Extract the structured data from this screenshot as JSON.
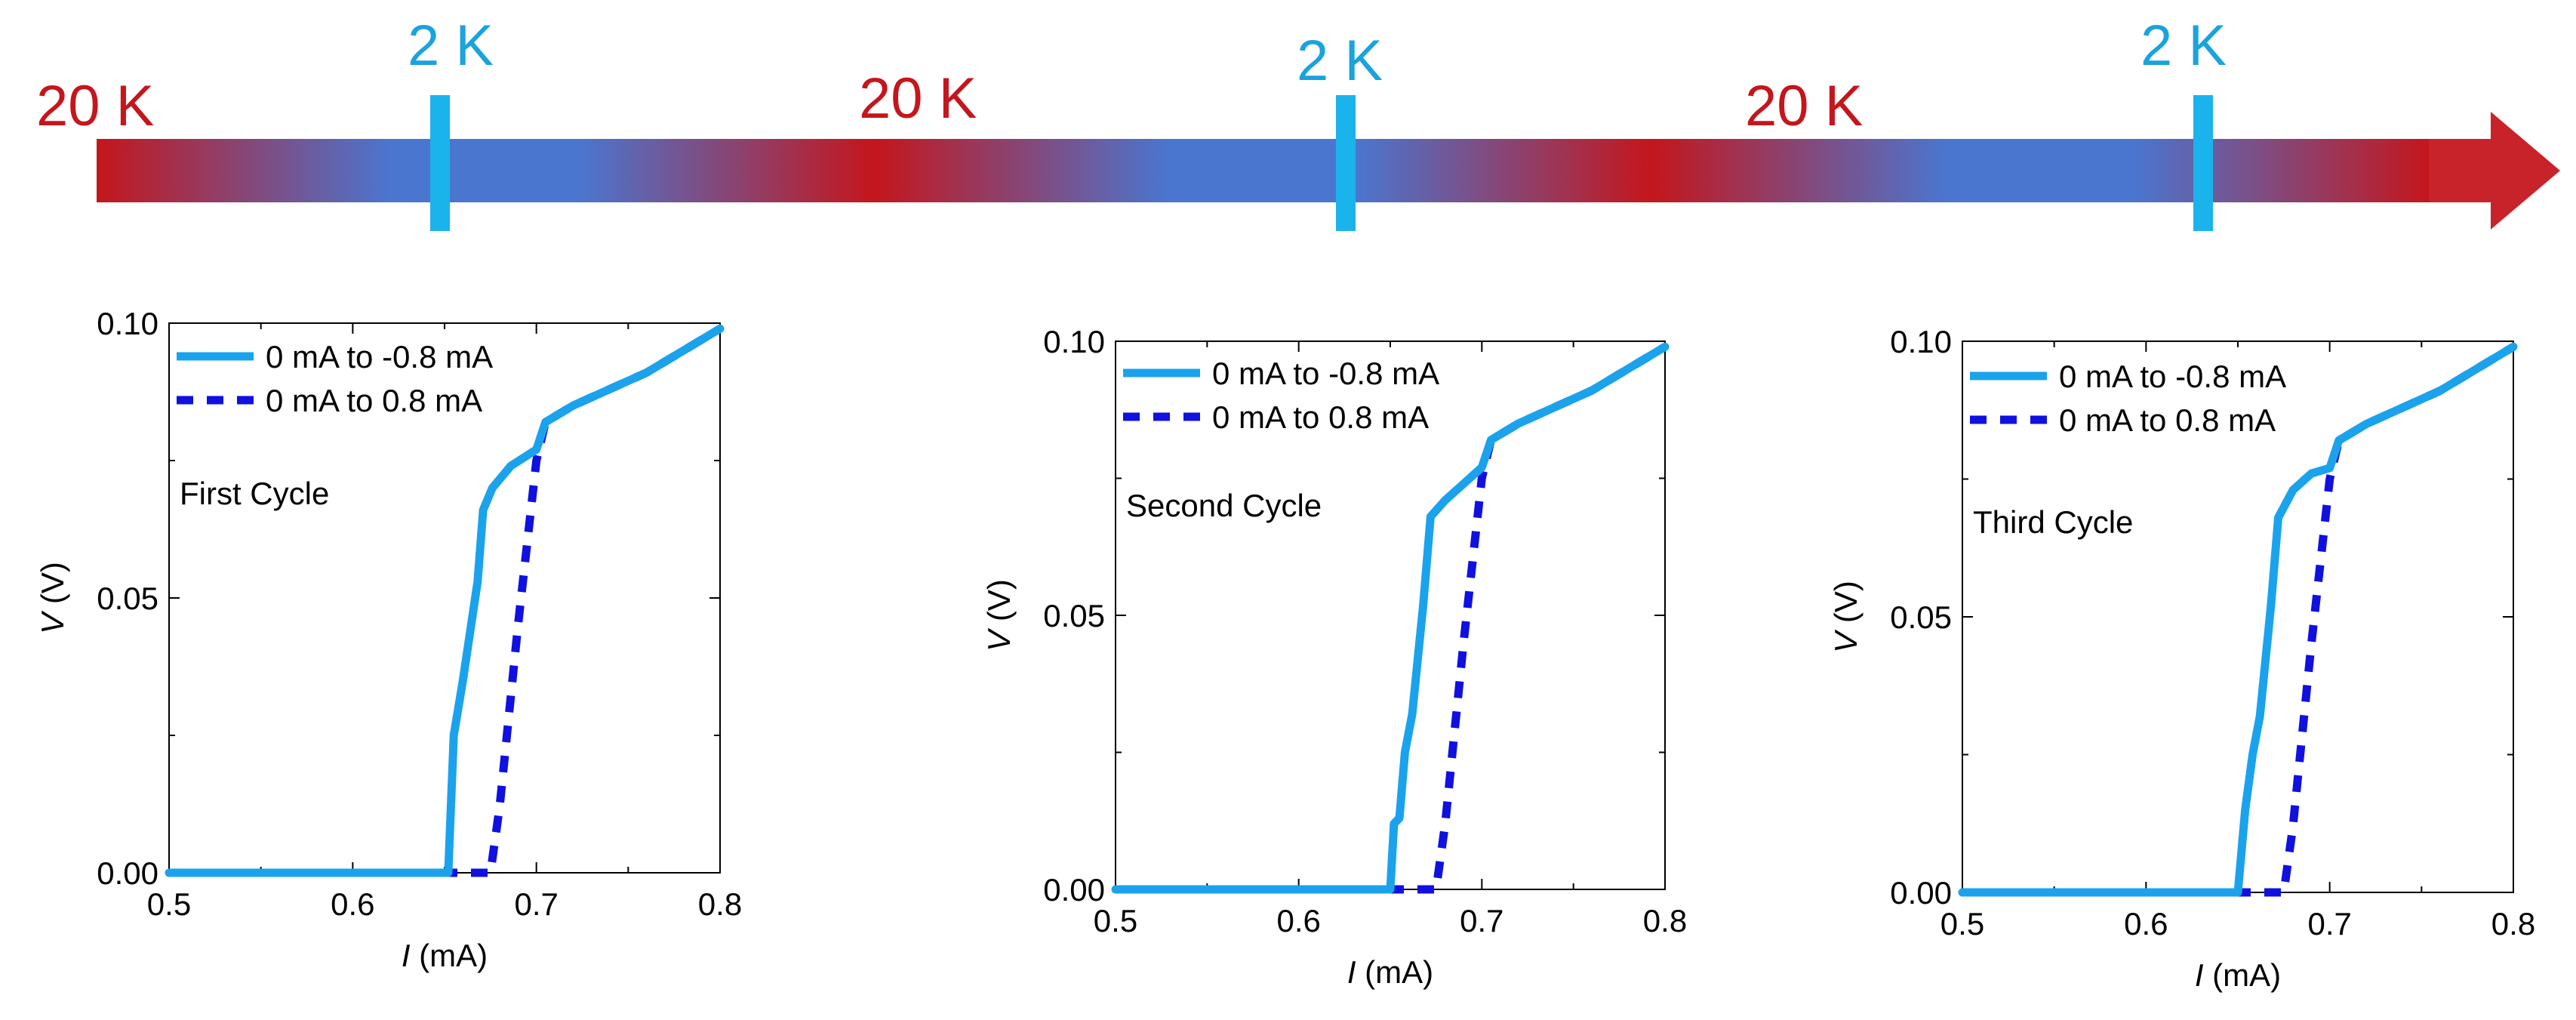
{
  "timeline": {
    "labels": [
      {
        "text": "20 K",
        "kind": "hot"
      },
      {
        "text": "2 K",
        "kind": "cold"
      },
      {
        "text": "20 K",
        "kind": "hot"
      },
      {
        "text": "2 K",
        "kind": "cold"
      },
      {
        "text": "20 K",
        "kind": "hot"
      },
      {
        "text": "2 K",
        "kind": "cold"
      }
    ],
    "colors": {
      "hot": "#c4161c",
      "cold": "#1aa3dd",
      "bar_cold": "#4a76d0",
      "marker": "#1bb3ec"
    }
  },
  "chart_data": [
    {
      "type": "line",
      "annotation": "First Cycle",
      "xlabel_italic": "I",
      "xlabel_rest": " (mA)",
      "ylabel_italic": "V",
      "ylabel_rest": " (V)",
      "xlim": [
        0.5,
        0.8
      ],
      "ylim": [
        0.0,
        0.1
      ],
      "xticks": [
        "0.5",
        "0.6",
        "0.7",
        "0.8"
      ],
      "yticks": [
        "0.00",
        "0.05",
        "0.10"
      ],
      "legend_position": "top-left",
      "series": [
        {
          "name": "0 mA to -0.8 mA",
          "style": "solid",
          "color": "#1aa3ec",
          "x": [
            0.5,
            0.652,
            0.655,
            0.66,
            0.668,
            0.671,
            0.676,
            0.686,
            0.7,
            0.705,
            0.72,
            0.76,
            0.8
          ],
          "y": [
            0.0,
            0.0,
            0.025,
            0.035,
            0.053,
            0.066,
            0.07,
            0.074,
            0.077,
            0.082,
            0.085,
            0.091,
            0.099
          ]
        },
        {
          "name": "0 mA to 0.8 mA",
          "style": "dashed",
          "color": "#1010e0",
          "x": [
            0.5,
            0.675,
            0.68,
            0.69,
            0.7,
            0.705,
            0.72,
            0.76,
            0.8
          ],
          "y": [
            0.0,
            0.0,
            0.012,
            0.045,
            0.075,
            0.082,
            0.085,
            0.091,
            0.099
          ]
        }
      ]
    },
    {
      "type": "line",
      "annotation": "Second Cycle",
      "xlabel_italic": "I",
      "xlabel_rest": " (mA)",
      "ylabel_italic": "V",
      "ylabel_rest": " (V)",
      "xlim": [
        0.5,
        0.8
      ],
      "ylim": [
        0.0,
        0.1
      ],
      "xticks": [
        "0.5",
        "0.6",
        "0.7",
        "0.8"
      ],
      "yticks": [
        "0.00",
        "0.05",
        "0.10"
      ],
      "legend_position": "top-left",
      "series": [
        {
          "name": "0 mA to -0.8 mA",
          "style": "solid",
          "color": "#1aa3ec",
          "x": [
            0.5,
            0.65,
            0.652,
            0.655,
            0.658,
            0.662,
            0.668,
            0.672,
            0.68,
            0.69,
            0.7,
            0.705,
            0.72,
            0.76,
            0.8
          ],
          "y": [
            0.0,
            0.0,
            0.012,
            0.013,
            0.025,
            0.032,
            0.052,
            0.068,
            0.071,
            0.074,
            0.077,
            0.082,
            0.085,
            0.091,
            0.099
          ]
        },
        {
          "name": "0 mA to 0.8 mA",
          "style": "dashed",
          "color": "#1010e0",
          "x": [
            0.5,
            0.675,
            0.68,
            0.69,
            0.7,
            0.705,
            0.72,
            0.76,
            0.8
          ],
          "y": [
            0.0,
            0.0,
            0.012,
            0.045,
            0.075,
            0.082,
            0.085,
            0.091,
            0.099
          ]
        }
      ]
    },
    {
      "type": "line",
      "annotation": "Third Cycle",
      "xlabel_italic": "I",
      "xlabel_rest": " (mA)",
      "ylabel_italic": "V",
      "ylabel_rest": " (V)",
      "xlim": [
        0.5,
        0.8
      ],
      "ylim": [
        0.0,
        0.1
      ],
      "xticks": [
        "0.5",
        "0.6",
        "0.7",
        "0.8"
      ],
      "yticks": [
        "0.00",
        "0.05",
        "0.10"
      ],
      "legend_position": "top-left",
      "series": [
        {
          "name": "0 mA to -0.8 mA",
          "style": "solid",
          "color": "#1aa3ec",
          "x": [
            0.5,
            0.65,
            0.654,
            0.658,
            0.662,
            0.668,
            0.672,
            0.68,
            0.69,
            0.7,
            0.705,
            0.72,
            0.76,
            0.8
          ],
          "y": [
            0.0,
            0.0,
            0.015,
            0.025,
            0.032,
            0.052,
            0.068,
            0.073,
            0.076,
            0.077,
            0.082,
            0.085,
            0.091,
            0.099
          ]
        },
        {
          "name": "0 mA to 0.8 mA",
          "style": "dashed",
          "color": "#1010e0",
          "x": [
            0.5,
            0.675,
            0.68,
            0.69,
            0.7,
            0.705,
            0.72,
            0.76,
            0.8
          ],
          "y": [
            0.0,
            0.0,
            0.012,
            0.045,
            0.075,
            0.082,
            0.085,
            0.091,
            0.099
          ]
        }
      ]
    }
  ]
}
